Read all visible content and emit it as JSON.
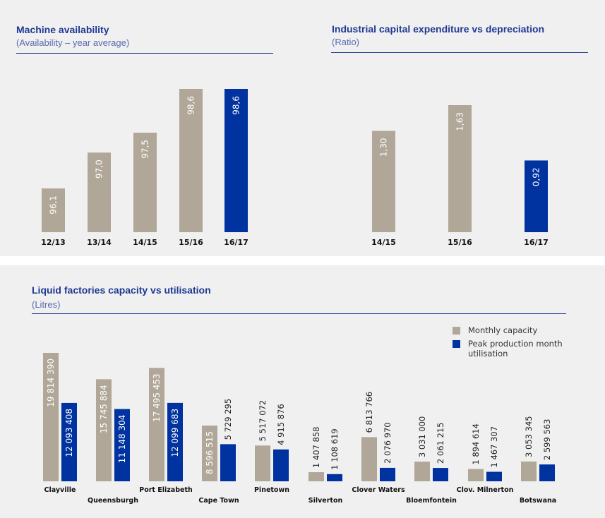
{
  "colors": {
    "gray": "#b0a798",
    "blue": "#0033a0",
    "title": "#1f3a93"
  },
  "chart_data": [
    {
      "type": "bar",
      "title": "Machine availability",
      "subtitle": "(Availability – year average)",
      "categories": [
        "12/13",
        "13/14",
        "14/15",
        "15/16",
        "16/17"
      ],
      "values": [
        96.1,
        97.0,
        97.5,
        98.6,
        98.6
      ],
      "value_labels": [
        "96,1",
        "97,0",
        "97,5",
        "98,6",
        "98,6"
      ],
      "highlight_index": 4,
      "ylim": [
        95.0,
        98.6
      ],
      "xlabel": "",
      "ylabel": "",
      "grid": false
    },
    {
      "type": "bar",
      "title": "Industrial capital expenditure vs depreciation",
      "subtitle": "(Ratio)",
      "categories": [
        "14/15",
        "15/16",
        "16/17"
      ],
      "values": [
        1.3,
        1.63,
        0.92
      ],
      "value_labels": [
        "1,30",
        "1,63",
        "0,92"
      ],
      "highlight_index": 2,
      "ylim": [
        0,
        1.8
      ],
      "xlabel": "",
      "ylabel": "",
      "grid": false
    },
    {
      "type": "bar",
      "title": "Liquid factories capacity vs utilisation",
      "subtitle": "(Litres)",
      "categories": [
        "Clayville",
        "Queensburgh",
        "Port Elizabeth",
        "Cape Town",
        "Pinetown",
        "Silverton",
        "Clover Waters",
        "Bloemfontein",
        "Clov. Milnerton",
        "Botswana"
      ],
      "series": [
        {
          "name": "Monthly capacity",
          "color": "#b0a798",
          "values": [
            19814390,
            15745884,
            17495453,
            8596515,
            5517072,
            1407858,
            6813766,
            3031000,
            1894614,
            3053345
          ],
          "value_labels": [
            "19 814 390",
            "15 745 884",
            "17 495 453",
            "8 596 515",
            "5 517 072",
            "1 407 858",
            "6 813 766",
            "3 031 000",
            "1 894 614",
            "3 053 345"
          ]
        },
        {
          "name": "Peak production month utilisation",
          "color": "#0033a0",
          "values": [
            12093408,
            11148304,
            12099683,
            5729295,
            4915876,
            1108619,
            2076970,
            2061215,
            1467307,
            2599563
          ],
          "value_labels": [
            "12 093 408",
            "11 148 304",
            "12 099 683",
            "5 729 295",
            "4 915 876",
            "1 108 619",
            "2 076 970",
            "2 061 215",
            "1 467 307",
            "2 599 563"
          ]
        }
      ],
      "legend_position": "top-right",
      "ylim": [
        0,
        19814390
      ],
      "xlabel": "",
      "ylabel": "",
      "grid": false
    }
  ]
}
